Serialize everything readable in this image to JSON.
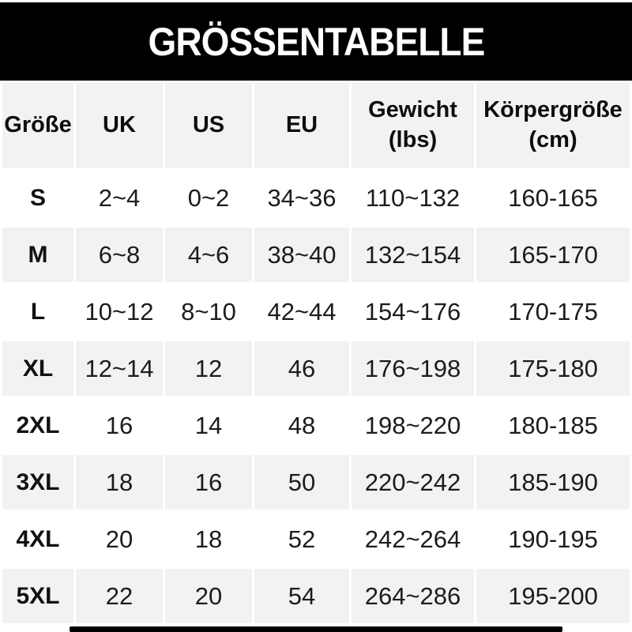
{
  "title": "GRÖSSENTABELLE",
  "colors": {
    "banner_bg": "#000000",
    "banner_text": "#ffffff",
    "row_alt_bg": "#f2f2f2",
    "row_bg": "#ffffff",
    "text": "#1c1c1e",
    "footer_bar": "#000000"
  },
  "table": {
    "headers": [
      {
        "label": "Größe",
        "sub": ""
      },
      {
        "label": "UK",
        "sub": ""
      },
      {
        "label": "US",
        "sub": ""
      },
      {
        "label": "EU",
        "sub": ""
      },
      {
        "label": "Gewicht",
        "sub": "(lbs)"
      },
      {
        "label": "Körpergröße",
        "sub": "(cm)"
      }
    ],
    "rows": [
      {
        "cells": [
          "S",
          "2~4",
          "0~2",
          "34~36",
          "110~132",
          "160-165"
        ]
      },
      {
        "cells": [
          "M",
          "6~8",
          "4~6",
          "38~40",
          "132~154",
          "165-170"
        ]
      },
      {
        "cells": [
          "L",
          "10~12",
          "8~10",
          "42~44",
          "154~176",
          "170-175"
        ]
      },
      {
        "cells": [
          "XL",
          "12~14",
          "12",
          "46",
          "176~198",
          "175-180"
        ]
      },
      {
        "cells": [
          "2XL",
          "16",
          "14",
          "48",
          "198~220",
          "180-185"
        ]
      },
      {
        "cells": [
          "3XL",
          "18",
          "16",
          "50",
          "220~242",
          "185-190"
        ]
      },
      {
        "cells": [
          "4XL",
          "20",
          "18",
          "52",
          "242~264",
          "190-195"
        ]
      },
      {
        "cells": [
          "5XL",
          "22",
          "20",
          "54",
          "264~286",
          "195-200"
        ]
      }
    ]
  },
  "chart_data": {
    "type": "table",
    "title": "GRÖSSENTABELLE",
    "columns": [
      "Größe",
      "UK",
      "US",
      "EU",
      "Gewicht (lbs)",
      "Körpergröße (cm)"
    ],
    "rows": [
      [
        "S",
        "2~4",
        "0~2",
        "34~36",
        "110~132",
        "160-165"
      ],
      [
        "M",
        "6~8",
        "4~6",
        "38~40",
        "132~154",
        "165-170"
      ],
      [
        "L",
        "10~12",
        "8~10",
        "42~44",
        "154~176",
        "170-175"
      ],
      [
        "XL",
        "12~14",
        "12",
        "46",
        "176~198",
        "175-180"
      ],
      [
        "2XL",
        "16",
        "14",
        "48",
        "198~220",
        "180-185"
      ],
      [
        "3XL",
        "18",
        "16",
        "50",
        "220~242",
        "185-190"
      ],
      [
        "4XL",
        "20",
        "18",
        "52",
        "242~264",
        "190-195"
      ],
      [
        "5XL",
        "22",
        "20",
        "54",
        "264~286",
        "195-200"
      ]
    ]
  }
}
